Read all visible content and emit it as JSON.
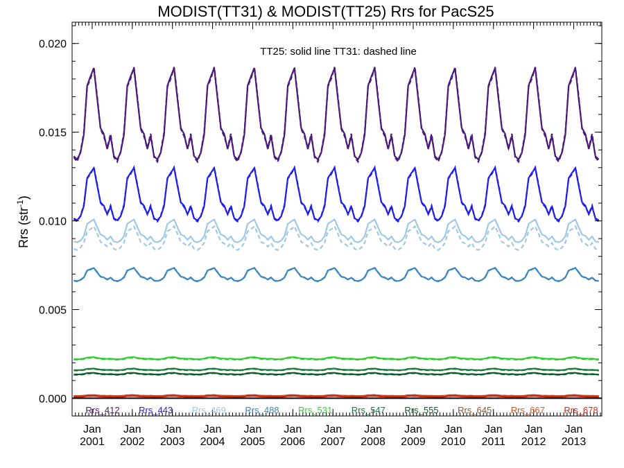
{
  "chart_data": {
    "type": "line",
    "title": "MODIST(TT31) & MODIST(TT25)  Rrs for PacS25",
    "ylabel": "Rrs (str",
    "ylabel_sup": "-1",
    "ylabel_tail": ")",
    "annotation": "TT25: solid line   TT31: dashed line",
    "line_styles": {
      "TT25": "solid",
      "TT31": "dashed"
    },
    "xlim": [
      2000.5,
      2013.7
    ],
    "ylim": [
      -0.001,
      0.0212
    ],
    "yticks": [
      0.0,
      0.005,
      0.01,
      0.015,
      0.02
    ],
    "ytick_labels": [
      "0.000",
      "0.005",
      "0.010",
      "0.015",
      "0.020"
    ],
    "x_tick_years": [
      2001,
      2002,
      2003,
      2004,
      2005,
      2006,
      2007,
      2008,
      2009,
      2010,
      2011,
      2012,
      2013
    ],
    "x_tick_month": "Jan",
    "x_tick_labels": [
      "2001",
      "2002",
      "2003",
      "2004",
      "2005",
      "2006",
      "2007",
      "2008",
      "2009",
      "2010",
      "2011",
      "2012",
      "2013"
    ],
    "grid": false,
    "legend_position": "bottom",
    "series_note": "Approximate monthly climatology pattern: means, amplitudes and phases estimated from the plotted curves",
    "series": [
      {
        "name": "Rrs_412",
        "color": "#4b1a7a",
        "mean": 0.0155,
        "amp": 0.0028,
        "tt31_offset": 0.0
      },
      {
        "name": "Rrs_443",
        "color": "#1f1fe6",
        "mean": 0.0112,
        "amp": 0.0016,
        "tt31_offset": 0.0
      },
      {
        "name": "Rrs_469",
        "color": "#9fc8e6",
        "mean": 0.0093,
        "amp": 0.0007,
        "tt31_offset": -0.0004
      },
      {
        "name": "Rrs_488",
        "color": "#3b86c0",
        "mean": 0.0069,
        "amp": 0.0004,
        "tt31_offset": 0.0
      },
      {
        "name": "Rrs_531",
        "color": "#33cc33",
        "mean": 0.00225,
        "amp": 6e-05,
        "tt31_offset": -3e-05
      },
      {
        "name": "Rrs_547",
        "color": "#1a7a3a",
        "mean": 0.00162,
        "amp": 5e-05,
        "tt31_offset": -2e-05
      },
      {
        "name": "Rrs_555",
        "color": "#0f5a2a",
        "mean": 0.00138,
        "amp": 5e-05,
        "tt31_offset": -2e-05
      },
      {
        "name": "Rrs_645",
        "color": "#a0522d",
        "mean": 0.00015,
        "amp": 3e-05,
        "tt31_offset": 0.0
      },
      {
        "name": "Rrs_667",
        "color": "#e0501a",
        "mean": 0.00012,
        "amp": 3e-05,
        "tt31_offset": 0.0
      },
      {
        "name": "Rrs_678",
        "color": "#c8281e",
        "mean": 0.0001,
        "amp": 3e-05,
        "tt31_offset": 0.0
      }
    ]
  }
}
